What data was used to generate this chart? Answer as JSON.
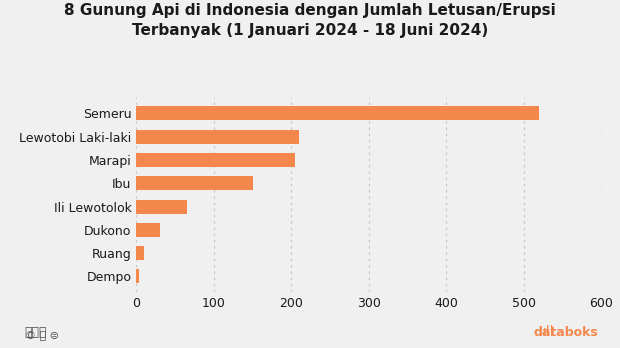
{
  "title_line1": "8 Gunung Api di Indonesia dengan Jumlah Letusan/Erupsi",
  "title_line2": "Terbanyak (1 Januari 2024 - 18 Juni 2024)",
  "categories": [
    "Dempo",
    "Ruang",
    "Dukono",
    "Ili Lewotolok",
    "Ibu",
    "Marapi",
    "Lewotobi Laki-laki",
    "Semeru"
  ],
  "values": [
    3,
    10,
    30,
    65,
    150,
    205,
    210,
    520
  ],
  "bar_color": "#F4874B",
  "background_color": "#F0F0F0",
  "xlim": [
    0,
    600
  ],
  "xticks": [
    0,
    100,
    200,
    300,
    400,
    500,
    600
  ],
  "title_fontsize": 11,
  "tick_fontsize": 9,
  "text_color": "#1a1a1a",
  "grid_color": "#c8c8c8",
  "databoks_color": "#F4874B",
  "footer_color": "#555555"
}
